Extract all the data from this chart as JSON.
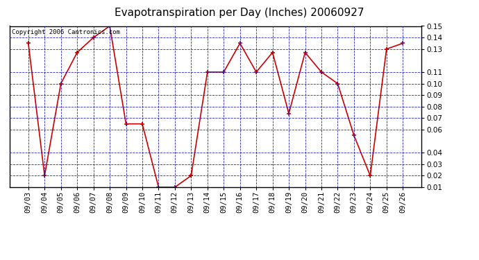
{
  "title": "Evapotranspiration per Day (Inches) 20060927",
  "copyright": "Copyright 2006 Cantronics.com",
  "dates": [
    "09/03",
    "09/04",
    "09/05",
    "09/06",
    "09/07",
    "09/08",
    "09/09",
    "09/10",
    "09/11",
    "09/12",
    "09/13",
    "09/14",
    "09/15",
    "09/16",
    "09/17",
    "09/18",
    "09/19",
    "09/20",
    "09/21",
    "09/22",
    "09/23",
    "09/24",
    "09/25",
    "09/26"
  ],
  "values": [
    0.135,
    0.02,
    0.1,
    0.127,
    0.14,
    0.15,
    0.065,
    0.065,
    0.01,
    0.01,
    0.02,
    0.11,
    0.11,
    0.135,
    0.11,
    0.127,
    0.074,
    0.127,
    0.11,
    0.1,
    0.055,
    0.02,
    0.13,
    0.135
  ],
  "line_color": "#cc0000",
  "marker": "+",
  "background_color": "#ffffff",
  "plot_bg_color": "#ffffff",
  "grid_color": "#0000bb",
  "ylim": [
    0.01,
    0.15
  ],
  "yticks": [
    0.01,
    0.02,
    0.03,
    0.04,
    0.06,
    0.07,
    0.08,
    0.09,
    0.1,
    0.11,
    0.13,
    0.14,
    0.15
  ],
  "title_fontsize": 11,
  "copyright_fontsize": 6.5,
  "tick_fontsize": 7.5
}
